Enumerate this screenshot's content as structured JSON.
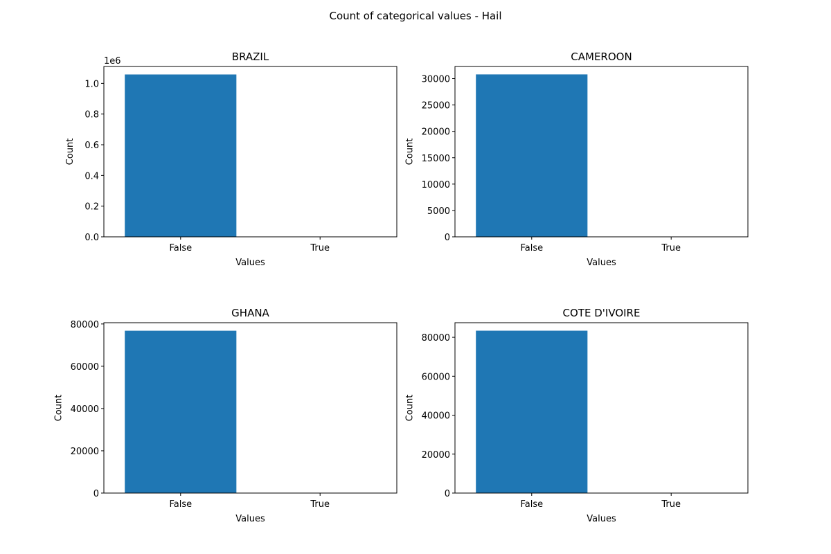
{
  "figure": {
    "suptitle": "Count of categorical values - Hail"
  },
  "colors": {
    "bar": "#1f77b4",
    "axis": "#000000",
    "background": "#ffffff"
  },
  "chart_data": [
    {
      "type": "bar",
      "title": "BRAZIL",
      "xlabel": "Values",
      "ylabel": "Count",
      "categories": [
        "False",
        "True"
      ],
      "values": [
        1058000,
        0
      ],
      "ylim": [
        0,
        1110000
      ],
      "yticks": [
        0,
        200000,
        400000,
        600000,
        800000,
        1000000
      ],
      "ytick_labels": [
        "0.0",
        "0.2",
        "0.4",
        "0.6",
        "0.8",
        "1.0"
      ],
      "offset_label": "1e6",
      "grid": false
    },
    {
      "type": "bar",
      "title": "CAMEROON",
      "xlabel": "Values",
      "ylabel": "Count",
      "categories": [
        "False",
        "True"
      ],
      "values": [
        30800,
        0
      ],
      "ylim": [
        0,
        32300
      ],
      "yticks": [
        0,
        5000,
        10000,
        15000,
        20000,
        25000,
        30000
      ],
      "ytick_labels": [
        "0",
        "5000",
        "10000",
        "15000",
        "20000",
        "25000",
        "30000"
      ],
      "grid": false
    },
    {
      "type": "bar",
      "title": "GHANA",
      "xlabel": "Values",
      "ylabel": "Count",
      "categories": [
        "False",
        "True"
      ],
      "values": [
        76800,
        0
      ],
      "ylim": [
        0,
        80600
      ],
      "yticks": [
        0,
        20000,
        40000,
        60000,
        80000
      ],
      "ytick_labels": [
        "0",
        "20000",
        "40000",
        "60000",
        "80000"
      ],
      "grid": false
    },
    {
      "type": "bar",
      "title": "COTE D'IVOIRE",
      "xlabel": "Values",
      "ylabel": "Count",
      "categories": [
        "False",
        "True"
      ],
      "values": [
        83400,
        0
      ],
      "ylim": [
        0,
        87500
      ],
      "yticks": [
        0,
        20000,
        40000,
        60000,
        80000
      ],
      "ytick_labels": [
        "0",
        "20000",
        "40000",
        "60000",
        "80000"
      ],
      "grid": false
    }
  ]
}
